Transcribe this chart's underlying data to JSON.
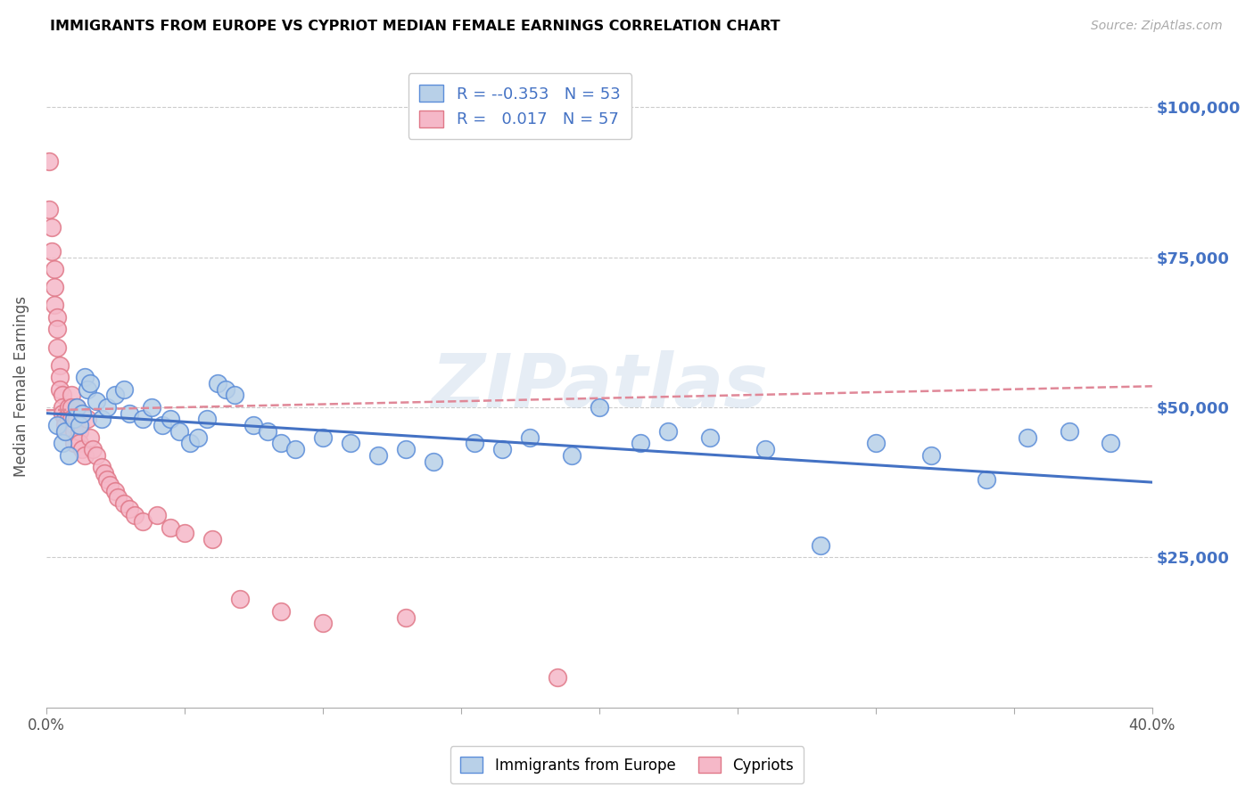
{
  "title": "IMMIGRANTS FROM EUROPE VS CYPRIOT MEDIAN FEMALE EARNINGS CORRELATION CHART",
  "source": "Source: ZipAtlas.com",
  "ylabel": "Median Female Earnings",
  "legend_label_blue": "Immigrants from Europe",
  "legend_label_pink": "Cypriots",
  "legend_R_blue": "-0.353",
  "legend_N_blue": "53",
  "legend_R_pink": "0.017",
  "legend_N_pink": "57",
  "watermark": "ZIPatlas",
  "y_tick_labels": [
    "$25,000",
    "$50,000",
    "$75,000",
    "$100,000"
  ],
  "y_tick_values": [
    25000,
    50000,
    75000,
    100000
  ],
  "x_lim": [
    0.0,
    0.4
  ],
  "y_lim": [
    0,
    107000
  ],
  "color_blue_fill": "#b8d0e8",
  "color_blue_edge": "#5b8dd9",
  "color_pink_fill": "#f5b8c8",
  "color_pink_edge": "#e07888",
  "color_line_blue": "#4472c4",
  "color_line_pink": "#e08898",
  "color_right_labels": "#4472c4",
  "blue_scatter_x": [
    0.004,
    0.006,
    0.007,
    0.008,
    0.01,
    0.011,
    0.012,
    0.013,
    0.014,
    0.015,
    0.016,
    0.018,
    0.02,
    0.022,
    0.025,
    0.028,
    0.03,
    0.035,
    0.038,
    0.042,
    0.045,
    0.048,
    0.052,
    0.055,
    0.058,
    0.062,
    0.065,
    0.068,
    0.075,
    0.08,
    0.085,
    0.09,
    0.1,
    0.11,
    0.12,
    0.13,
    0.14,
    0.155,
    0.165,
    0.175,
    0.19,
    0.2,
    0.215,
    0.225,
    0.24,
    0.26,
    0.28,
    0.3,
    0.32,
    0.34,
    0.355,
    0.37,
    0.385
  ],
  "blue_scatter_y": [
    47000,
    44000,
    46000,
    42000,
    48000,
    50000,
    47000,
    49000,
    55000,
    53000,
    54000,
    51000,
    48000,
    50000,
    52000,
    53000,
    49000,
    48000,
    50000,
    47000,
    48000,
    46000,
    44000,
    45000,
    48000,
    54000,
    53000,
    52000,
    47000,
    46000,
    44000,
    43000,
    45000,
    44000,
    42000,
    43000,
    41000,
    44000,
    43000,
    45000,
    42000,
    50000,
    44000,
    46000,
    45000,
    43000,
    27000,
    44000,
    42000,
    38000,
    45000,
    46000,
    44000
  ],
  "pink_scatter_x": [
    0.001,
    0.001,
    0.002,
    0.002,
    0.003,
    0.003,
    0.003,
    0.004,
    0.004,
    0.004,
    0.005,
    0.005,
    0.005,
    0.006,
    0.006,
    0.006,
    0.007,
    0.007,
    0.007,
    0.008,
    0.008,
    0.008,
    0.009,
    0.009,
    0.009,
    0.01,
    0.01,
    0.01,
    0.011,
    0.011,
    0.012,
    0.012,
    0.013,
    0.014,
    0.015,
    0.016,
    0.017,
    0.018,
    0.02,
    0.021,
    0.022,
    0.023,
    0.025,
    0.026,
    0.028,
    0.03,
    0.032,
    0.035,
    0.04,
    0.045,
    0.05,
    0.06,
    0.07,
    0.085,
    0.1,
    0.13,
    0.185
  ],
  "pink_scatter_y": [
    91000,
    83000,
    80000,
    76000,
    73000,
    70000,
    67000,
    65000,
    63000,
    60000,
    57000,
    55000,
    53000,
    52000,
    50000,
    49000,
    48000,
    47000,
    46000,
    50000,
    48000,
    46000,
    52000,
    50000,
    48000,
    47000,
    46000,
    44000,
    50000,
    48000,
    46000,
    44000,
    43000,
    42000,
    48000,
    45000,
    43000,
    42000,
    40000,
    39000,
    38000,
    37000,
    36000,
    35000,
    34000,
    33000,
    32000,
    31000,
    32000,
    30000,
    29000,
    28000,
    18000,
    16000,
    14000,
    15000,
    5000
  ],
  "blue_line_x": [
    0.0,
    0.4
  ],
  "blue_line_y": [
    49000,
    37500
  ],
  "pink_line_x": [
    0.0,
    0.4
  ],
  "pink_line_y": [
    49500,
    53500
  ]
}
